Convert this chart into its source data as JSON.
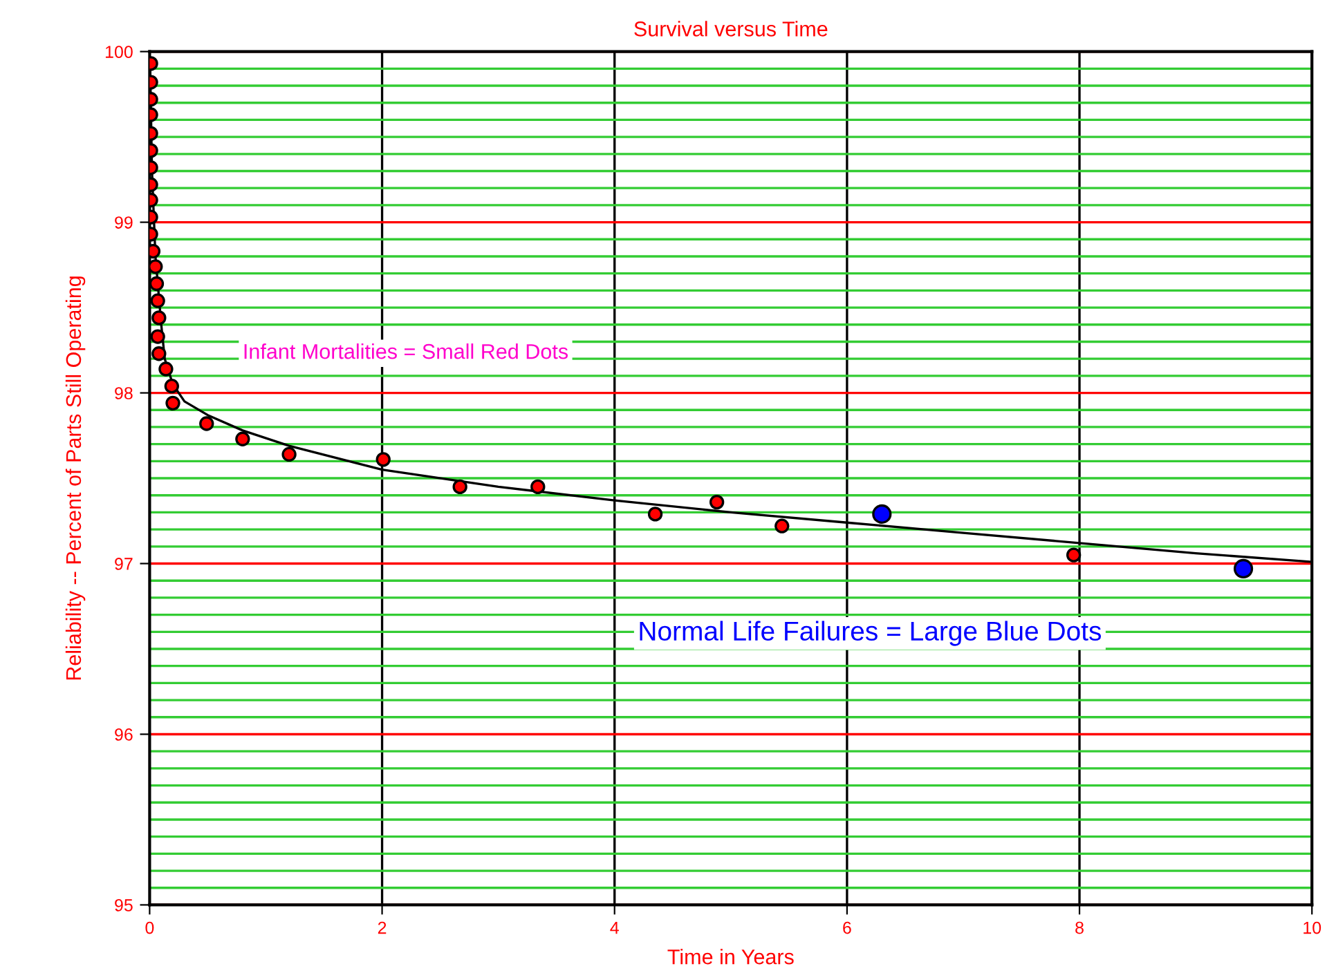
{
  "chart_data": {
    "type": "scatter",
    "title": "Survival versus Time",
    "xlabel": "Time in Years",
    "ylabel": "Reliability -- Percent of Parts Still Operating",
    "xlim": [
      0,
      10
    ],
    "ylim": [
      95,
      100
    ],
    "xticks": [
      0,
      2,
      4,
      6,
      8,
      10
    ],
    "yticks": [
      95,
      {
        "value": 95.1,
        "label": null
      },
      {
        "value": 95.2,
        "label": null
      },
      {
        "value": 95.3,
        "label": null
      },
      {
        "value": 95.4,
        "label": null
      },
      {
        "value": 95.5,
        "label": null
      },
      {
        "value": 95.6,
        "label": null
      },
      {
        "value": 95.7,
        "label": null
      },
      {
        "value": 95.8,
        "label": null
      },
      {
        "value": 95.9,
        "label": null
      },
      96,
      {
        "value": 96.1,
        "label": null
      },
      {
        "value": 96.2,
        "label": null
      },
      {
        "value": 96.3,
        "label": null
      },
      {
        "value": 96.4,
        "label": null
      },
      {
        "value": 96.5,
        "label": null
      },
      {
        "value": 96.6,
        "label": null
      },
      {
        "value": 96.7,
        "label": null
      },
      {
        "value": 96.8,
        "label": null
      },
      {
        "value": 96.9,
        "label": null
      },
      97,
      {
        "value": 97.1,
        "label": null
      },
      {
        "value": 97.2,
        "label": null
      },
      {
        "value": 97.3,
        "label": null
      },
      {
        "value": 97.4,
        "label": null
      },
      {
        "value": 97.5,
        "label": null
      },
      {
        "value": 97.6,
        "label": null
      },
      {
        "value": 97.7,
        "label": null
      },
      {
        "value": 97.8,
        "label": null
      },
      {
        "value": 97.9,
        "label": null
      },
      98,
      {
        "value": 98.1,
        "label": null
      },
      {
        "value": 98.2,
        "label": null
      },
      {
        "value": 98.3,
        "label": null
      },
      {
        "value": 98.4,
        "label": null
      },
      {
        "value": 98.5,
        "label": null
      },
      {
        "value": 98.6,
        "label": null
      },
      {
        "value": 98.7,
        "label": null
      },
      {
        "value": 98.8,
        "label": null
      },
      {
        "value": 98.9,
        "label": null
      },
      99,
      {
        "value": 99.1,
        "label": null
      },
      {
        "value": 99.2,
        "label": null
      },
      {
        "value": 99.3,
        "label": null
      },
      {
        "value": 99.4,
        "label": null
      },
      {
        "value": 99.5,
        "label": null
      },
      {
        "value": 99.6,
        "label": null
      },
      {
        "value": 99.7,
        "label": null
      },
      {
        "value": 99.8,
        "label": null
      },
      {
        "value": 99.9,
        "label": null
      },
      100
    ],
    "grid": true,
    "marker": "circle",
    "annotations": [
      "Infant Mortalities = Small Red Dots",
      "Normal Life Failures = Large Blue Dots"
    ],
    "series": [
      {
        "color": "#ff0000",
        "x": [
          0.01,
          0.01,
          0.01,
          0.01,
          0.01,
          0.01,
          0.01,
          0.01,
          0.01,
          0.01,
          0.01,
          0.03,
          0.05,
          0.06,
          0.07,
          0.08,
          0.07,
          0.08,
          0.14,
          0.19,
          0.2,
          0.49,
          0.8,
          1.2,
          2.01,
          2.67,
          3.34,
          4.35,
          4.88,
          5.44,
          7.95
        ],
        "values": [
          99.93,
          99.82,
          99.72,
          99.63,
          99.52,
          99.42,
          99.32,
          99.22,
          99.13,
          99.03,
          98.93,
          98.83,
          98.74,
          98.64,
          98.54,
          98.44,
          98.33,
          98.23,
          98.14,
          98.04,
          97.94,
          97.82,
          97.73,
          97.64,
          97.61,
          97.45,
          97.45,
          97.29,
          97.36,
          97.22,
          97.05
        ]
      },
      {
        "color": "#0000ff",
        "x": [
          6.3,
          9.41
        ],
        "values": [
          97.29,
          96.97
        ]
      },
      {
        "type": "line",
        "color": "#000000",
        "marker": "none",
        "x": [
          0.005,
          0.02,
          0.05,
          0.1,
          0.13,
          0.2,
          0.3,
          0.5,
          0.8,
          1.2,
          2,
          3,
          4,
          5,
          6,
          7,
          8,
          9,
          10
        ],
        "values": [
          99.9,
          99.3,
          98.8,
          98.4,
          98.2,
          98.05,
          97.95,
          97.87,
          97.78,
          97.69,
          97.55,
          97.45,
          97.37,
          97.3,
          97.24,
          97.18,
          97.12,
          97.06,
          97.01
        ]
      }
    ]
  }
}
